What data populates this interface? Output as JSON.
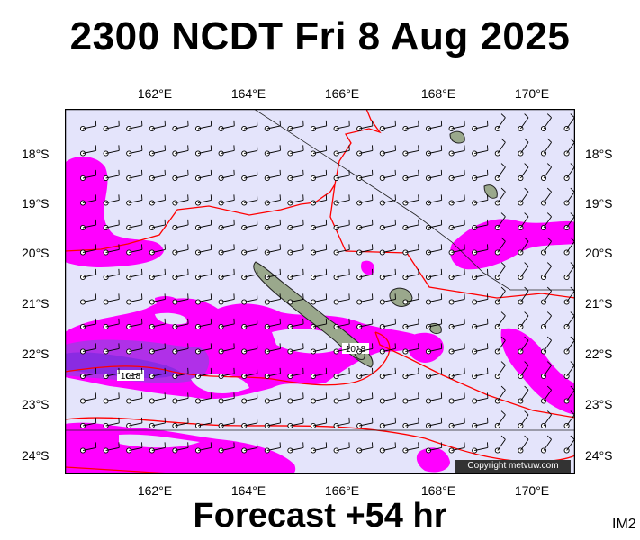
{
  "title": "2300 NCDT Fri 8 Aug 2025",
  "footer": "Forecast +54 hr",
  "tag": "IM2",
  "copyright": "Copyright metvuw.com",
  "lon_labels": [
    "162°E",
    "164°E",
    "166°E",
    "168°E",
    "170°E"
  ],
  "lat_labels": [
    "18°S",
    "19°S",
    "20°S",
    "21°S",
    "22°S",
    "23°S",
    "24°S"
  ],
  "isobar_labels": [
    "1018",
    "1018"
  ],
  "colors": {
    "ocean": "#e4e4fb",
    "rain_light": "#ff00ff",
    "rain_mid": "#b030e8",
    "rain_heavy": "#8a2be2",
    "isobar": "#ff0000",
    "land": "#9aa88c"
  }
}
